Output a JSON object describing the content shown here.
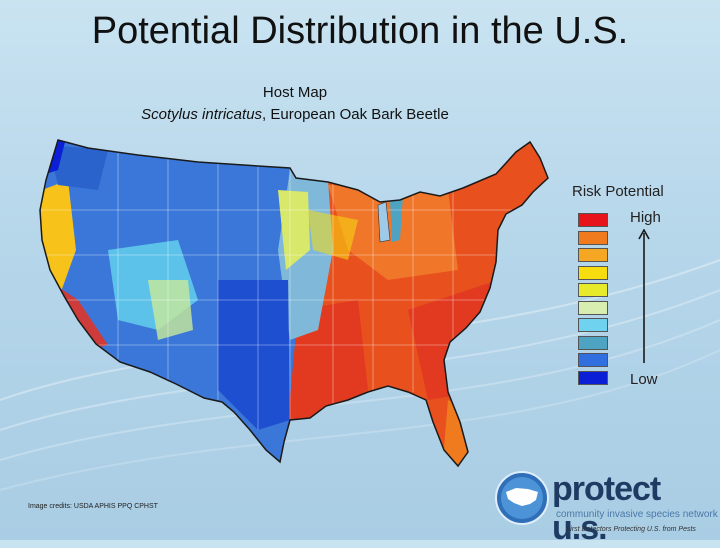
{
  "slide": {
    "title": "Potential Distribution in the U.S."
  },
  "map": {
    "title": "Host Map",
    "species": "Scotylus intricatus",
    "species_suffix": ", European Oak Bark Beetle"
  },
  "legend": {
    "title": "Risk Potential",
    "high_label": "High",
    "low_label": "Low",
    "colors": [
      "#e8141c",
      "#f07a1e",
      "#f5a623",
      "#f7dc10",
      "#e6ea2a",
      "#d8eeb0",
      "#6fd3f0",
      "#4fa3c2",
      "#2f6fe0",
      "#0a1fd6"
    ]
  },
  "credits": {
    "text": "Image credits: USDA APHIS PPQ CPHST"
  },
  "logo": {
    "name": "protect u.s.",
    "tagline": "community invasive species network",
    "slogan": "First Detectors Protecting U.S. from Pests"
  }
}
